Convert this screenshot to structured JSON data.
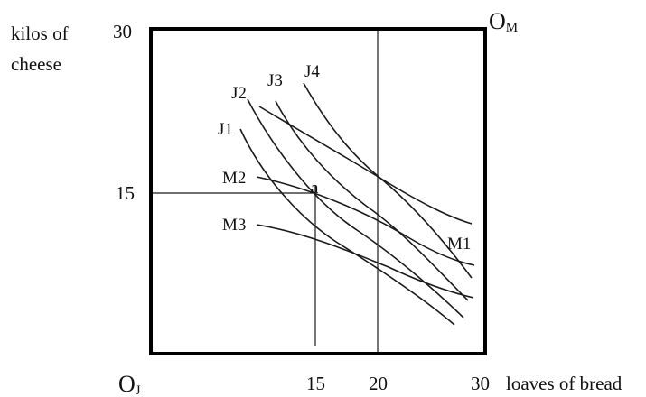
{
  "y_axis_label": [
    "kilos of",
    "cheese"
  ],
  "x_axis_label": "loaves of bread",
  "origins": {
    "jones": {
      "main": "O",
      "sub": "J"
    },
    "mary": {
      "main": "O",
      "sub": "M"
    }
  },
  "y_ticks": {
    "top": "30",
    "mid": "15"
  },
  "x_ticks": {
    "a": "15",
    "b": "20",
    "c": "30"
  },
  "jones_curves": [
    "J1",
    "J2",
    "J3",
    "J4"
  ],
  "mary_curves": [
    "M1",
    "M2",
    "M3"
  ],
  "point_label": "a"
}
